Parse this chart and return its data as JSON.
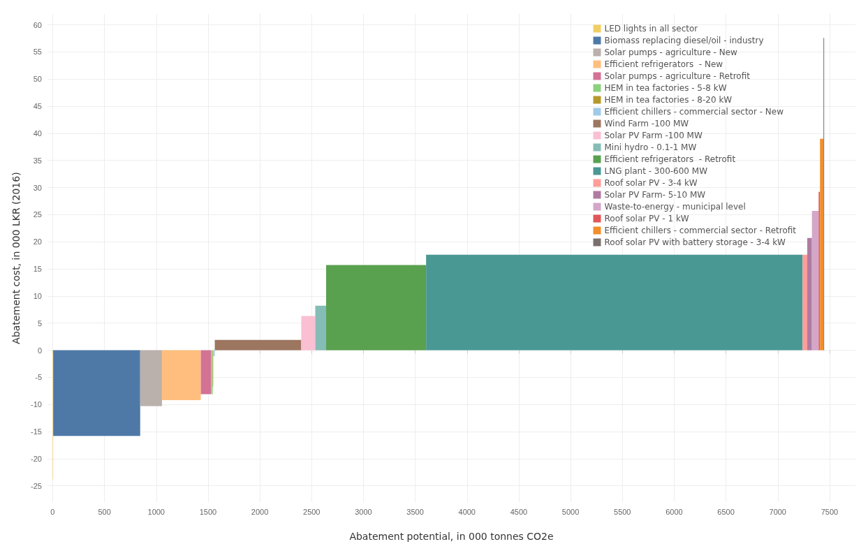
{
  "chart_data": {
    "type": "area",
    "xlabel": "Abatement potential, in 000 tonnes CO2e",
    "ylabel": "Abatement cost, in 000 LKR (2016)",
    "xlim": [
      -50,
      7750
    ],
    "xticks": [
      0,
      500,
      1000,
      1500,
      2000,
      2500,
      3000,
      3500,
      4000,
      4500,
      5000,
      5500,
      6000,
      6500,
      7000,
      7500
    ],
    "ylim": [
      -28,
      62
    ],
    "yticks": [
      -25,
      -20,
      -15,
      -10,
      -5,
      0,
      5,
      10,
      15,
      20,
      25,
      30,
      35,
      40,
      45,
      50,
      55,
      60
    ],
    "grid": true,
    "legend": "top right",
    "series": [
      {
        "name": "LED lights in all sector",
        "color": "#f1ce63",
        "x": [
          0,
          5
        ],
        "values": [
          -23.8,
          -23.8
        ]
      },
      {
        "name": "Biomass replacing diesel/oil - industry",
        "color": "#4e79a7",
        "x": [
          5,
          845
        ],
        "values": [
          -15.8,
          -15.8
        ]
      },
      {
        "name": "Solar pumps - agriculture - New",
        "color": "#bab0ac",
        "x": [
          845,
          1055
        ],
        "values": [
          -10.3,
          -10.3
        ]
      },
      {
        "name": "Efficient refrigerators  - New",
        "color": "#ffbe7d",
        "x": [
          1055,
          1430
        ],
        "values": [
          -9.2,
          -9.2
        ]
      },
      {
        "name": "Solar pumps - agriculture - Retrofit",
        "color": "#d37295",
        "x": [
          1430,
          1530
        ],
        "values": [
          -8.1,
          -8.1
        ]
      },
      {
        "name": "HEM in tea factories - 5-8 kW",
        "color": "#8cd17d",
        "x": [
          1530,
          1545
        ],
        "values": [
          -8.1,
          -8.1
        ]
      },
      {
        "name": "HEM in tea factories - 8-20 kW",
        "color": "#b6992d",
        "x": [
          1545,
          1550
        ],
        "values": [
          -6.7,
          -6.7
        ]
      },
      {
        "name": "Efficient chillers - commercial sector - New",
        "color": "#a0cbe8",
        "x": [
          1550,
          1565
        ],
        "values": [
          -1.1,
          -1.1
        ]
      },
      {
        "name": "Wind Farm -100 MW",
        "color": "#9d7660",
        "x": [
          1565,
          2400
        ],
        "values": [
          1.9,
          1.9
        ]
      },
      {
        "name": "Solar PV Farm -100 MW",
        "color": "#fabfd2",
        "x": [
          2400,
          2535
        ],
        "values": [
          6.3,
          6.3
        ]
      },
      {
        "name": "Mini hydro - 0.1-1 MW",
        "color": "#86bcb6",
        "x": [
          2535,
          2640
        ],
        "values": [
          8.2,
          8.2
        ]
      },
      {
        "name": "Efficient refrigerators  - Retrofit",
        "color": "#59a14f",
        "x": [
          2640,
          3605
        ],
        "values": [
          15.7,
          15.7
        ]
      },
      {
        "name": "LNG plant - 300-600 MW",
        "color": "#499894",
        "x": [
          3605,
          7240
        ],
        "values": [
          17.6,
          17.6
        ]
      },
      {
        "name": "Roof solar PV - 3-4 kW",
        "color": "#ff9d9a",
        "x": [
          7240,
          7285
        ],
        "values": [
          17.6,
          17.6
        ]
      },
      {
        "name": "Solar PV Farm- 5-10 MW",
        "color": "#b07aa1",
        "x": [
          7285,
          7330
        ],
        "values": [
          20.7,
          20.7
        ]
      },
      {
        "name": "Waste-to-energy - municipal level",
        "color": "#d4a6c8",
        "x": [
          7330,
          7395
        ],
        "values": [
          25.7,
          25.7
        ]
      },
      {
        "name": "Roof solar PV - 1 kW",
        "color": "#e15759",
        "x": [
          7395,
          7408
        ],
        "values": [
          29.2,
          29.2
        ]
      },
      {
        "name": "Efficient chillers - commercial sector - Retrofit",
        "color": "#f28e2b",
        "x": [
          7408,
          7441
        ],
        "values": [
          39,
          39
        ]
      },
      {
        "name": "Roof solar PV with battery storage - 3-4 kW",
        "color": "#79706e",
        "x": [
          7441,
          7448
        ],
        "values": [
          57.6,
          57.6
        ]
      }
    ]
  }
}
